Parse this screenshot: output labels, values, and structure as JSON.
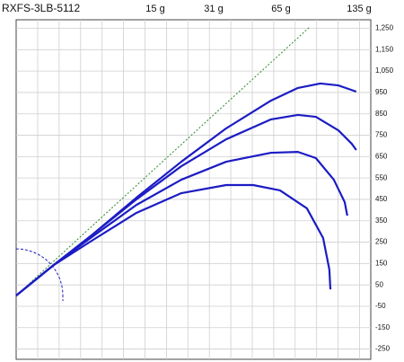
{
  "chart_data": {
    "type": "line",
    "title": "RXFS-3LB-5112",
    "xlim": [
      0,
      1660
    ],
    "ylim": [
      -298,
      1290
    ],
    "yticks": [
      {
        "value": 1250,
        "label": "1,250"
      },
      {
        "value": 1150,
        "label": "1,150"
      },
      {
        "value": 1050,
        "label": "1,050"
      },
      950,
      850,
      750,
      650,
      550,
      450,
      350,
      250,
      150,
      50,
      -50,
      -150,
      -250
    ],
    "grid": true,
    "series": [
      {
        "name": "15 g",
        "color": "#1c1cc4",
        "x": [
          0,
          176,
          353,
          563,
          773,
          983,
          1109,
          1235,
          1361,
          1437,
          1466,
          1471
        ],
        "values": [
          0,
          143,
          256,
          387,
          479,
          517,
          517,
          492,
          408,
          269,
          122,
          29
        ]
      },
      {
        "name": "31 g",
        "color": "#1c1cc4",
        "x": [
          0,
          176,
          353,
          563,
          773,
          983,
          1193,
          1319,
          1403,
          1487,
          1538,
          1550
        ],
        "values": [
          0,
          143,
          273,
          424,
          542,
          626,
          668,
          672,
          643,
          542,
          437,
          374
        ]
      },
      {
        "name": "65 g",
        "color": "#1c1cc4",
        "x": [
          0,
          176,
          353,
          563,
          773,
          983,
          1193,
          1319,
          1403,
          1508,
          1571,
          1592
        ],
        "values": [
          0,
          143,
          282,
          450,
          605,
          731,
          824,
          845,
          836,
          773,
          710,
          681
        ]
      },
      {
        "name": "135 g",
        "color": "#1c1cc4",
        "x": [
          0,
          176,
          353,
          563,
          773,
          983,
          1193,
          1319,
          1424,
          1508,
          1592
        ],
        "values": [
          0,
          143,
          282,
          458,
          626,
          782,
          912,
          971,
          992,
          983,
          954
        ]
      }
    ]
  }
}
